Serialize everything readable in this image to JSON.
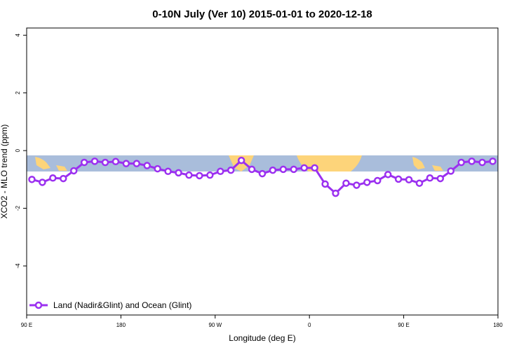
{
  "chart_data": {
    "type": "line",
    "title": "0-10N July (Ver 10)   2015-01-01 to 2020-12-18",
    "x_label": "Longitude (deg E)",
    "y_label": "XCO2 - MLO trend (ppm)",
    "xlim": [
      90,
      540
    ],
    "ylim": [
      -5.7,
      4.25
    ],
    "xticks": [
      {
        "value": 90,
        "label": "90 E"
      },
      {
        "value": 180,
        "label": "180"
      },
      {
        "value": 270,
        "label": "90 W"
      },
      {
        "value": 360,
        "label": "0"
      },
      {
        "value": 450,
        "label": "90 E"
      },
      {
        "value": 540,
        "label": "180"
      }
    ],
    "yticks": [
      -4,
      -2,
      0,
      2,
      4
    ],
    "legend_position": "bottom-left",
    "x": [
      95,
      105,
      115,
      125,
      135,
      145,
      155,
      165,
      175,
      185,
      195,
      205,
      215,
      225,
      235,
      245,
      255,
      265,
      275,
      285,
      295,
      305,
      315,
      325,
      335,
      345,
      355,
      365,
      375,
      385,
      395,
      405,
      415,
      425,
      435,
      445,
      455,
      465,
      475,
      485,
      495,
      505,
      515,
      525,
      535
    ],
    "series": [
      {
        "name": "Land (Nadir&Glint) and Ocean (Glint)",
        "color": "#9b30f0",
        "values": [
          -1.0,
          -1.1,
          -0.95,
          -0.97,
          -0.7,
          -0.41,
          -0.37,
          -0.41,
          -0.38,
          -0.45,
          -0.45,
          -0.52,
          -0.63,
          -0.72,
          -0.77,
          -0.85,
          -0.87,
          -0.85,
          -0.72,
          -0.68,
          -0.34,
          -0.65,
          -0.8,
          -0.68,
          -0.65,
          -0.65,
          -0.6,
          -0.6,
          -1.16,
          -1.48,
          -1.13,
          -1.2,
          -1.1,
          -1.04,
          -0.83,
          -0.99,
          -1.01,
          -1.13,
          -0.95,
          -0.97,
          -0.71,
          -0.41,
          -0.37,
          -0.41,
          -0.37
        ]
      }
    ]
  }
}
